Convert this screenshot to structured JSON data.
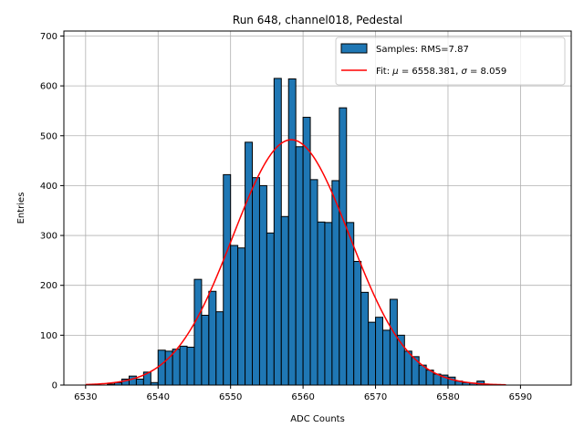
{
  "chart_data": {
    "type": "bar",
    "title": "Run 648, channel018, Pedestal",
    "xlabel": "ADC Counts",
    "ylabel": "Entries",
    "xlim": [
      6527,
      6597
    ],
    "ylim": [
      0,
      710
    ],
    "xticks": [
      6530,
      6540,
      6550,
      6560,
      6570,
      6580,
      6590
    ],
    "yticks": [
      0,
      100,
      200,
      300,
      400,
      500,
      600,
      700
    ],
    "grid": true,
    "legend_position": "top-right",
    "series": [
      {
        "name": "Samples: RMS=7.87",
        "kind": "histogram",
        "bin_width": 1,
        "color": "#1f77b4",
        "edge_color": "#000000",
        "bin_starts": [
          6533,
          6534,
          6535,
          6536,
          6537,
          6538,
          6539,
          6540,
          6541,
          6542,
          6543,
          6544,
          6545,
          6546,
          6547,
          6548,
          6549,
          6550,
          6551,
          6552,
          6553,
          6554,
          6555,
          6556,
          6557,
          6558,
          6559,
          6560,
          6561,
          6562,
          6563,
          6564,
          6565,
          6566,
          6567,
          6568,
          6569,
          6570,
          6571,
          6572,
          6573,
          6574,
          6575,
          6576,
          6577,
          6578,
          6579,
          6580,
          6581,
          6582,
          6583,
          6584
        ],
        "values": [
          2,
          5,
          12,
          18,
          12,
          26,
          5,
          70,
          68,
          72,
          78,
          76,
          212,
          140,
          188,
          147,
          422,
          280,
          275,
          487,
          416,
          400,
          305,
          615,
          338,
          614,
          478,
          537,
          412,
          327,
          326,
          410,
          556,
          326,
          248,
          186,
          126,
          136,
          110,
          172,
          100,
          68,
          57,
          40,
          30,
          22,
          20,
          16,
          8,
          5,
          4,
          8
        ]
      },
      {
        "name": "Fit: μ = 6558.381, σ = 8.059",
        "name_parts": {
          "prefix": "Fit: ",
          "mu": "μ",
          "mid": " = 6558.381, ",
          "sigma": "σ",
          "suffix": " = 8.059"
        },
        "kind": "gaussian-fit",
        "color": "#ff0000",
        "mu": 6558.381,
        "sigma": 8.059,
        "amplitude": 492,
        "x_range": [
          6530,
          6588
        ]
      }
    ]
  }
}
